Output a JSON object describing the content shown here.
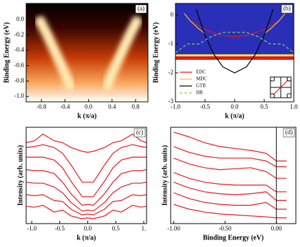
{
  "chart_data": [
    {
      "type": "image",
      "label": "(a)",
      "xlabel": "k (π/a)",
      "ylabel": "Binding Energy (eV)",
      "xlim": [
        -1.06,
        1.01
      ],
      "ylim": [
        -1.07,
        0.21
      ],
      "xticks": [
        {
          "value": -0.8,
          "label": "-0.8"
        },
        {
          "value": -0.4,
          "label": "-0.4"
        },
        {
          "value": 0,
          "label": "0.0"
        },
        {
          "value": 0.4,
          "label": "0.4"
        },
        {
          "value": 0.8,
          "label": "0.8"
        }
      ],
      "yticks": [
        {
          "value": 0,
          "label": "0.0"
        },
        {
          "value": -0.2,
          "label": "-0.2"
        },
        {
          "value": -0.4,
          "label": "-0.4"
        },
        {
          "value": -0.6,
          "label": "-0.6"
        },
        {
          "value": -0.8,
          "label": "-0.8"
        },
        {
          "value": -1.0,
          "label": "-1.0"
        }
      ],
      "series": [
        {
          "color": "#fff6c8",
          "x": [
            -0.85,
            -0.7,
            -0.55,
            -0.4,
            -0.3
          ],
          "values": [
            0.02,
            -0.2,
            -0.45,
            -0.7,
            -0.9
          ]
        },
        {
          "color": "#fff6c8",
          "x": [
            0.85,
            0.7,
            0.55,
            0.4,
            0.3
          ],
          "values": [
            0.02,
            -0.2,
            -0.45,
            -0.7,
            -0.9
          ]
        }
      ]
    },
    {
      "type": "line",
      "label": "(b)",
      "xlabel": "k (π/a)",
      "ylabel": "Binding Energy (eV)",
      "xlim": [
        -1,
        1
      ],
      "ylim": [
        -3,
        0.4
      ],
      "legend": "lower left",
      "xticks": [
        {
          "value": -1,
          "label": "-1.0"
        },
        {
          "value": -0.5,
          "label": "-0.5"
        },
        {
          "value": 0,
          "label": "0.0"
        },
        {
          "value": 0.5,
          "label": "0.5"
        },
        {
          "value": 1,
          "label": "1.0"
        }
      ],
      "yticks": [
        0,
        -1,
        -2,
        -3
      ],
      "series": [
        {
          "name": "EDC",
          "color": "#e8141b",
          "x": [
            -0.75,
            -0.5,
            -0.25,
            0,
            0.25,
            0.5,
            0.75
          ],
          "values": [
            -0.2,
            -0.5,
            -0.69,
            -0.75,
            -0.69,
            -0.5,
            -0.2
          ]
        },
        {
          "name": "MDC",
          "color": "#f2c12e",
          "x": [
            -0.85,
            -0.75,
            -0.62,
            -0.5,
            0,
            0.5,
            0.62,
            0.75,
            0.85
          ],
          "values": [
            0.05,
            -0.2,
            -0.45,
            -0.65,
            null,
            -0.65,
            -0.45,
            -0.2,
            0.05
          ]
        },
        {
          "name": "GTB",
          "color": "#000000",
          "x": [
            -0.65,
            -0.5,
            -0.35,
            -0.2,
            0,
            0.2,
            0.35,
            0.5,
            0.65
          ],
          "values": [
            0.2,
            -0.7,
            -1.36,
            -1.79,
            -2,
            -1.79,
            -1.36,
            -0.7,
            0.2
          ]
        },
        {
          "name": "HB",
          "color": "#7ed957",
          "dash": true,
          "x": [
            -1,
            -0.8,
            -0.6,
            -0.4,
            -0.2,
            0,
            0.2,
            0.4,
            0.6,
            0.8,
            1
          ],
          "values": [
            -1.3,
            -1.0,
            -1.0,
            -0.75,
            -0.6,
            -0.6,
            -0.6,
            -0.75,
            -1.0,
            -1.0,
            -1.3
          ]
        }
      ]
    },
    {
      "type": "line",
      "label": "(c)",
      "xlabel": "k (π/a)",
      "ylabel": "Intensity (arb. units)",
      "xlim": [
        -1.1,
        1.05
      ],
      "ylim": [
        0,
        10
      ],
      "xticks": [
        {
          "value": -1,
          "label": "-1.0"
        },
        {
          "value": -0.5,
          "label": "-0.5"
        },
        {
          "value": 0,
          "label": "0.0"
        },
        {
          "value": 0.5,
          "label": "0.5"
        },
        {
          "value": 1,
          "label": "1."
        }
      ],
      "x": [
        -1.1,
        -0.95,
        -0.8,
        -0.6,
        -0.45,
        -0.3,
        -0.1,
        0,
        0.1,
        0.3,
        0.45,
        0.6,
        0.8,
        0.95,
        1.05
      ],
      "series": [
        {
          "color": "#e8141b",
          "values": [
            1.8,
            1.7,
            1.9,
            1.2,
            1.4,
            0.8,
            0.5,
            0.6,
            0.5,
            0.8,
            1.4,
            1.2,
            1.9,
            1.7,
            1.8
          ]
        },
        {
          "color": "#e8141b",
          "values": [
            3,
            2.9,
            3,
            2.4,
            2.3,
            1.5,
            0.9,
            1,
            0.9,
            1.5,
            2.3,
            2.4,
            3,
            2.9,
            3
          ]
        },
        {
          "color": "#e8141b",
          "values": [
            4.3,
            4.2,
            4.2,
            3.8,
            3.2,
            2.2,
            1.3,
            1.4,
            1.3,
            2.2,
            3.2,
            3.8,
            4.2,
            4.2,
            4.3
          ]
        },
        {
          "color": "#e8141b",
          "values": [
            5.6,
            5.5,
            5.5,
            5.2,
            4.3,
            3.1,
            1.9,
            2,
            1.9,
            3.1,
            4.3,
            5.2,
            5.5,
            5.5,
            5.6
          ]
        },
        {
          "color": "#e8141b",
          "values": [
            6.9,
            6.9,
            6.9,
            6.6,
            5.8,
            4.4,
            2.8,
            2.8,
            2.8,
            4.4,
            5.8,
            6.6,
            6.9,
            6.9,
            6.9
          ]
        },
        {
          "color": "#e8141b",
          "values": [
            7.9,
            8,
            8.2,
            7.9,
            7.3,
            6.1,
            4.3,
            4.3,
            4.3,
            6.1,
            7.3,
            7.9,
            8.2,
            8,
            7.9
          ]
        },
        {
          "color": "#e8141b",
          "values": [
            8.4,
            8.6,
            9.3,
            8.6,
            8.4,
            7.9,
            7.5,
            7.4,
            7.5,
            7.9,
            8.4,
            8.6,
            9.3,
            8.6,
            8.4
          ]
        }
      ]
    },
    {
      "type": "line",
      "label": "(d)",
      "xlabel": "Binding Energy (eV)",
      "ylabel": "Intensity (arb. units)",
      "xlim": [
        -1.03,
        0.19
      ],
      "ylim": [
        0,
        10
      ],
      "vline": 0,
      "xticks": [
        {
          "value": -1,
          "label": "-1.00"
        },
        {
          "value": -0.5,
          "label": "-0.50"
        },
        {
          "value": 0,
          "label": "0.00"
        }
      ],
      "x": [
        -1.0,
        -0.85,
        -0.7,
        -0.55,
        -0.4,
        -0.25,
        -0.1,
        0.0,
        0.05,
        0.1
      ],
      "series": [
        {
          "color": "#e8141b",
          "values": [
            2,
            1.5,
            1.2,
            1,
            0.9,
            0.8,
            0.7,
            0.6,
            0.6,
            0.6
          ]
        },
        {
          "color": "#e8141b",
          "values": [
            3.2,
            2.6,
            2.2,
            2,
            1.9,
            1.9,
            2.2,
            1.5,
            1.5,
            1.5
          ]
        },
        {
          "color": "#e8141b",
          "values": [
            4.3,
            3.7,
            3.3,
            3.1,
            3,
            3.1,
            3.3,
            2.4,
            2.4,
            2.4
          ]
        },
        {
          "color": "#e8141b",
          "values": [
            5.3,
            4.7,
            4.3,
            4.1,
            4,
            4,
            4,
            3.3,
            3.3,
            3.3
          ]
        },
        {
          "color": "#e8141b",
          "values": [
            6.8,
            6.2,
            5.8,
            5.6,
            5.7,
            5.8,
            5.4,
            4.7,
            4.7,
            4.7
          ]
        },
        {
          "color": "#e8141b",
          "values": [
            8,
            7.4,
            7,
            6.8,
            6.8,
            6.8,
            6.5,
            5.9,
            5.9,
            5.9
          ]
        },
        {
          "color": "#e8141b",
          "values": [
            9.5,
            9,
            8.4,
            8,
            7.8,
            7.6,
            7.3,
            6.5,
            6.5,
            6.5
          ]
        }
      ]
    }
  ]
}
